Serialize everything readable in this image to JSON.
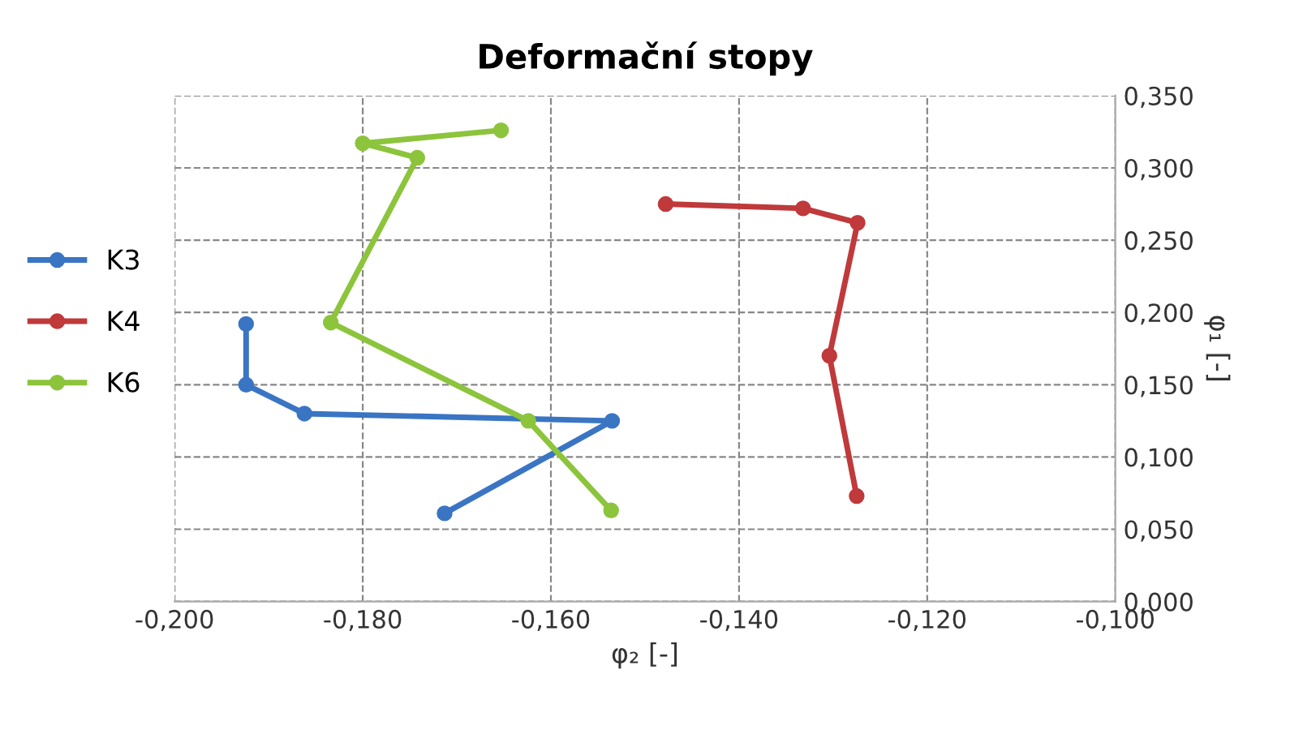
{
  "chart_data": {
    "type": "line",
    "title": "Deformační stopy",
    "xlabel": "φ₂ [-]",
    "ylabel": "φ₁ [-]",
    "series": [
      {
        "name": "K3",
        "color": "#3a75c4",
        "x": [
          -0.1713,
          -0.1535,
          -0.1862,
          -0.1924,
          -0.1924
        ],
        "values": [
          0.061,
          0.125,
          0.13,
          0.15,
          0.192
        ]
      },
      {
        "name": "K4",
        "color": "#c0393b",
        "x": [
          -0.1275,
          -0.1304,
          -0.1274,
          -0.1332,
          -0.1478
        ],
        "values": [
          0.073,
          0.17,
          0.262,
          0.272,
          0.275
        ]
      },
      {
        "name": "K6",
        "color": "#8cc43c",
        "x": [
          -0.1536,
          -0.1624,
          -0.1834,
          -0.1742,
          -0.18,
          -0.1653
        ],
        "values": [
          0.063,
          0.125,
          0.193,
          0.307,
          0.317,
          0.326
        ]
      }
    ],
    "xlim": [
      -0.2,
      -0.1
    ],
    "ylim": [
      0,
      0.35
    ],
    "xticks": [
      {
        "value": -0.2,
        "label": "-0,200"
      },
      {
        "value": -0.18,
        "label": "-0,180"
      },
      {
        "value": -0.16,
        "label": "-0,160"
      },
      {
        "value": -0.14,
        "label": "-0,140"
      },
      {
        "value": -0.12,
        "label": "-0,120"
      },
      {
        "value": -0.1,
        "label": "-0,100"
      }
    ],
    "yticks": [
      {
        "value": 0,
        "label": "0,000"
      },
      {
        "value": 0.05,
        "label": "0,050"
      },
      {
        "value": 0.1,
        "label": "0,100"
      },
      {
        "value": 0.15,
        "label": "0,150"
      },
      {
        "value": 0.2,
        "label": "0,200"
      },
      {
        "value": 0.25,
        "label": "0,250"
      },
      {
        "value": 0.3,
        "label": "0,300"
      },
      {
        "value": 0.35,
        "label": "0,350"
      }
    ],
    "grid": true,
    "legend": "left",
    "marker": "circle",
    "line_style": "solid"
  }
}
